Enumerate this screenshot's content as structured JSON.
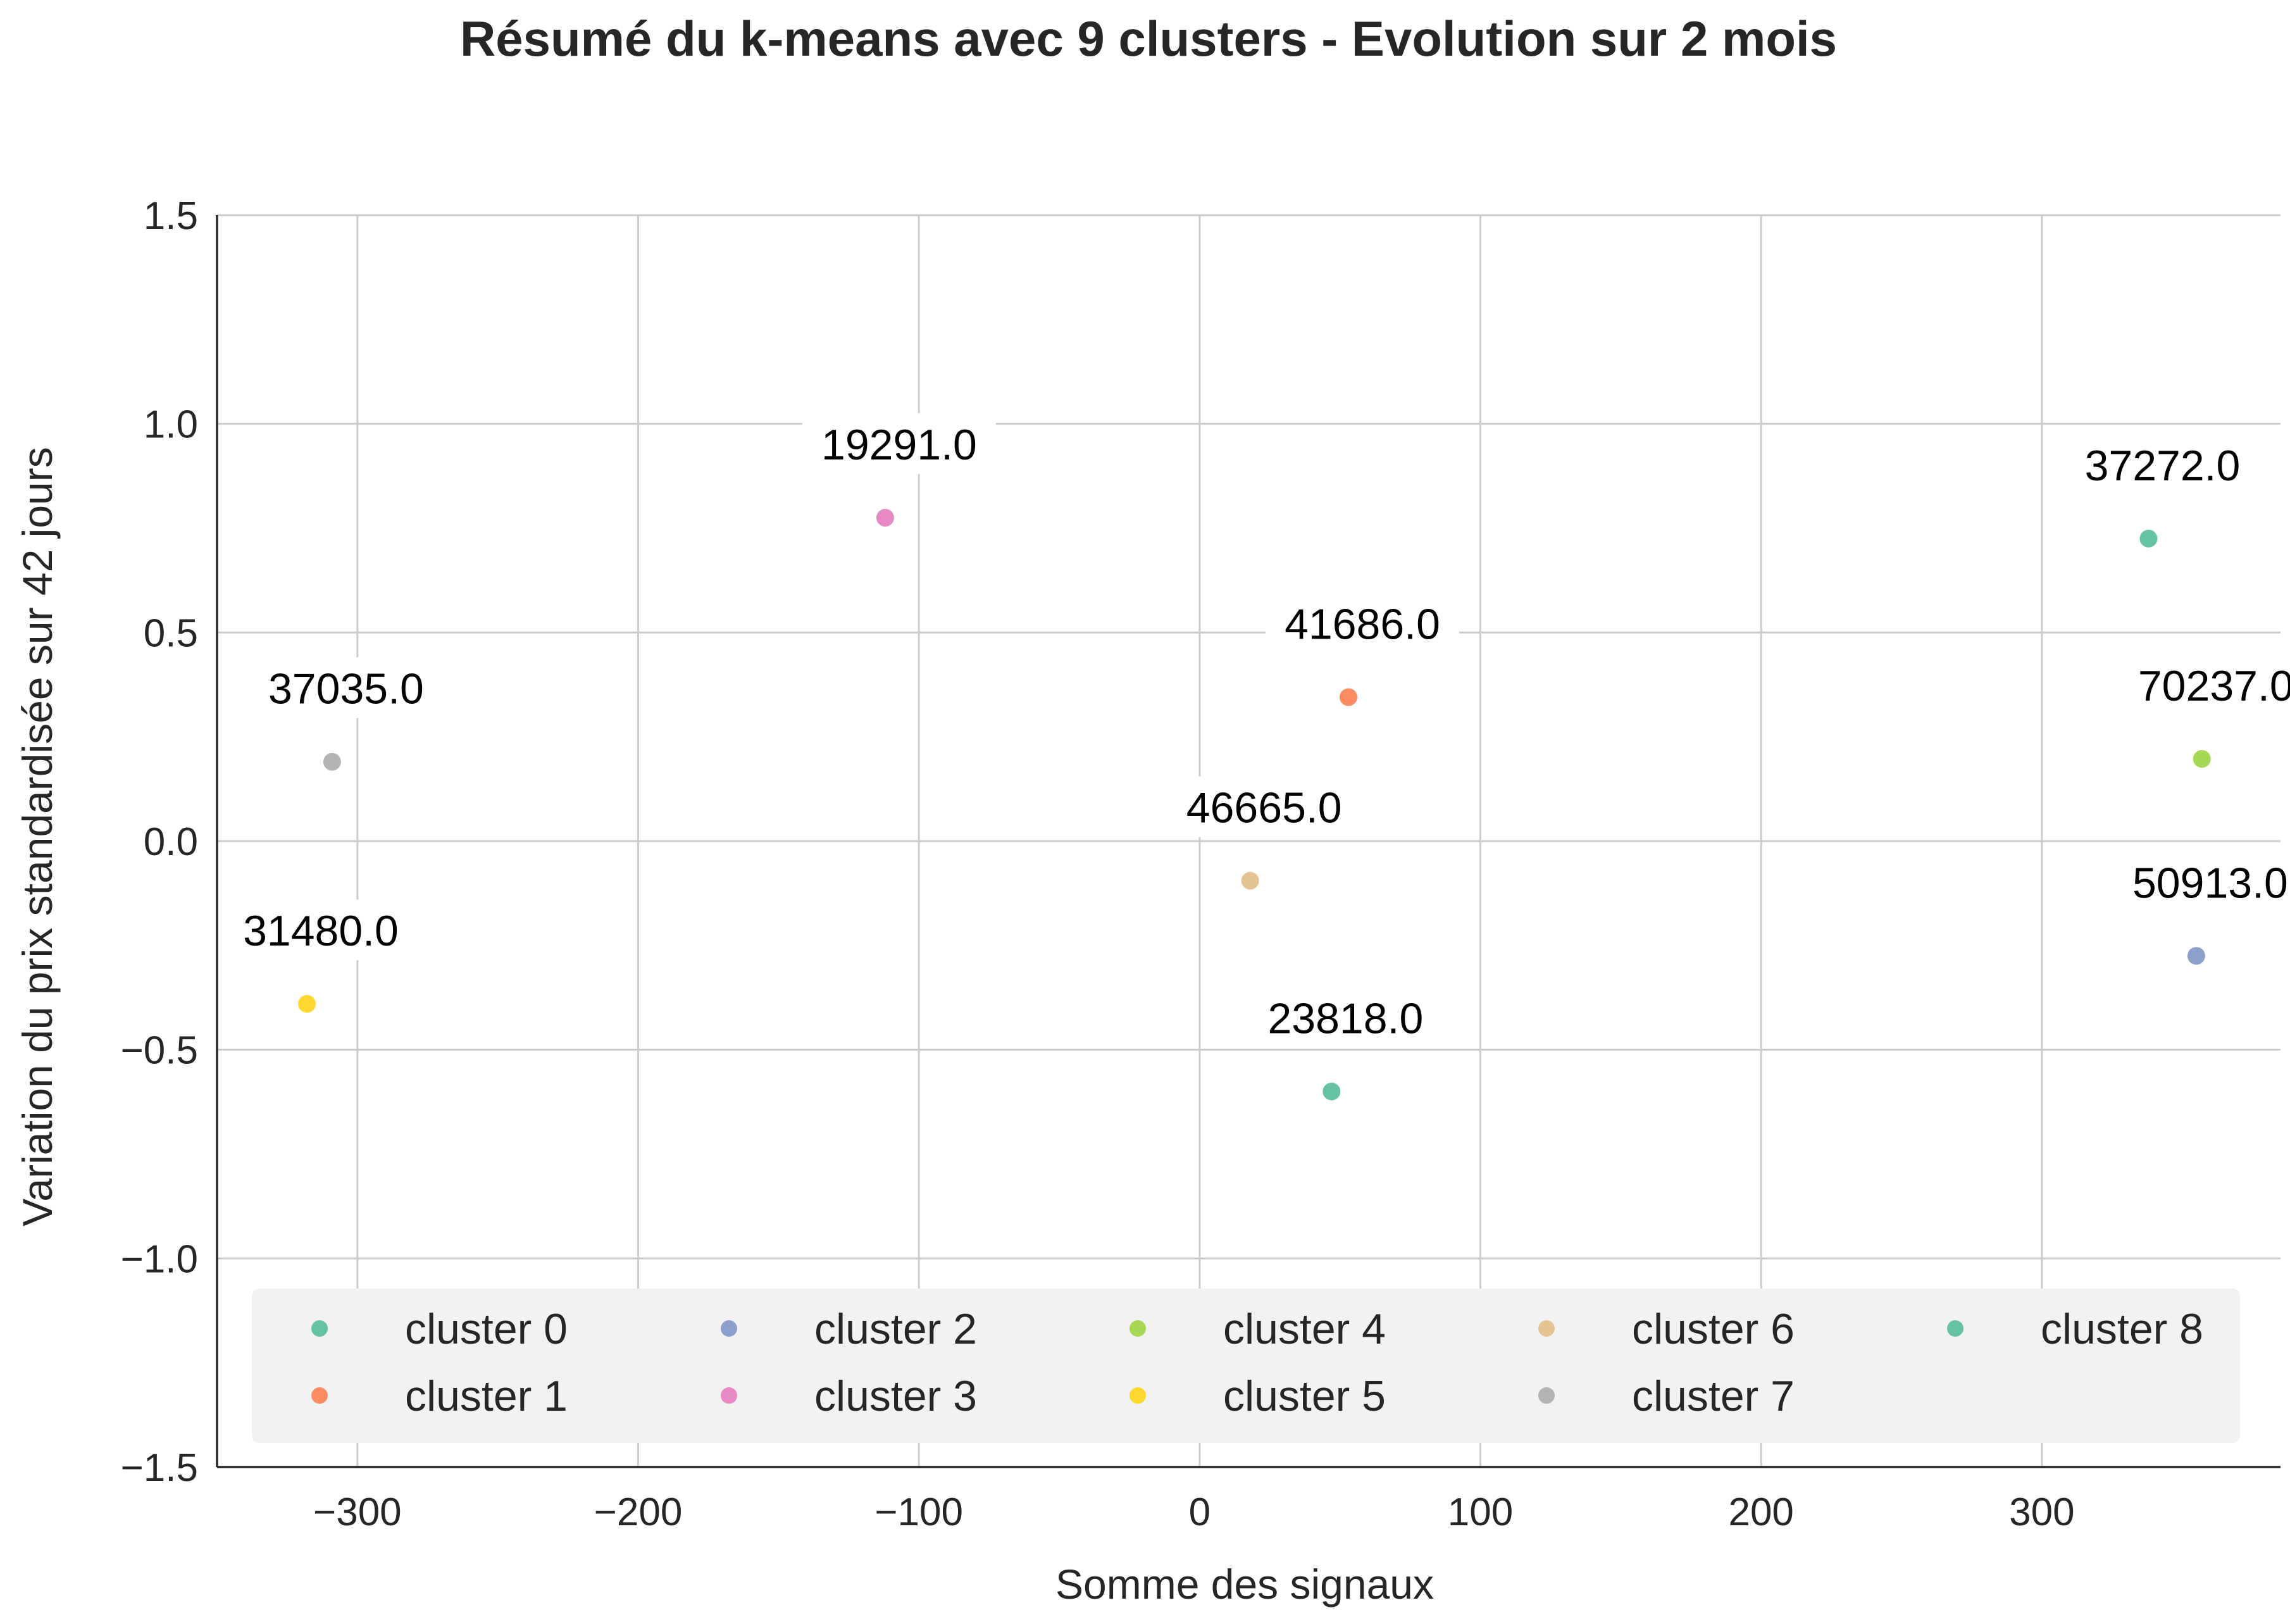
{
  "chart_data": {
    "type": "scatter",
    "title": "Résumé du k-means avec 9 clusters - Evolution sur 2 mois",
    "xlabel": "Somme des signaux",
    "ylabel": "Variation du prix standardisée sur 42 jours",
    "xlim": [
      -350,
      385
    ],
    "ylim": [
      -1.5,
      1.5
    ],
    "xticks": [
      -300,
      -200,
      -100,
      0,
      100,
      200,
      300
    ],
    "yticks": [
      -1.5,
      -1.0,
      -0.5,
      0.0,
      0.5,
      1.0,
      1.5
    ],
    "xtick_labels": [
      "−300",
      "−200",
      "−100",
      "0",
      "100",
      "200",
      "300"
    ],
    "ytick_labels": [
      "−1.5",
      "−1.0",
      "−0.5",
      "0.0",
      "0.5",
      "1.0",
      "1.5"
    ],
    "grid": true,
    "legend_position": "bottom",
    "series": [
      {
        "name": "cluster 0",
        "color": "#66c2a5",
        "x": 338,
        "y": 0.725,
        "label": "37272.0"
      },
      {
        "name": "cluster 1",
        "color": "#fc8d62",
        "x": 53,
        "y": 0.345,
        "label": "41686.0"
      },
      {
        "name": "cluster 2",
        "color": "#8da0cb",
        "x": 355,
        "y": -0.275,
        "label": "50913.0"
      },
      {
        "name": "cluster 3",
        "color": "#e78ac3",
        "x": -112,
        "y": 0.775,
        "label": "19291.0"
      },
      {
        "name": "cluster 4",
        "color": "#a6d854",
        "x": 357,
        "y": 0.197,
        "label": "70237.0"
      },
      {
        "name": "cluster 5",
        "color": "#ffd92f",
        "x": -318,
        "y": -0.39,
        "label": "31480.0"
      },
      {
        "name": "cluster 6",
        "color": "#e5c494",
        "x": 18,
        "y": -0.095,
        "label": "46665.0"
      },
      {
        "name": "cluster 7",
        "color": "#b3b3b3",
        "x": -309,
        "y": 0.19,
        "label": "37035.0"
      },
      {
        "name": "cluster 8",
        "color": "#66c2a5",
        "x": 47,
        "y": -0.6,
        "label": "23818.0"
      }
    ]
  }
}
